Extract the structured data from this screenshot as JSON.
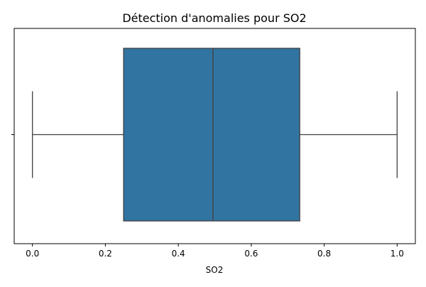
{
  "chart_data": {
    "type": "box",
    "title": "Détection d'anomalies pour SO2",
    "xlabel": "SO2",
    "ylabel": "",
    "orientation": "horizontal",
    "xlim": [
      -0.05,
      1.05
    ],
    "xticks": [
      0.0,
      0.2,
      0.4,
      0.6,
      0.8,
      1.0
    ],
    "xtick_labels": [
      "0.0",
      "0.2",
      "0.4",
      "0.6",
      "0.8",
      "1.0"
    ],
    "ytick_labels": [
      ""
    ],
    "grid": false,
    "series": [
      {
        "min": 0.0,
        "q1": 0.25,
        "median": 0.495,
        "q3": 0.733,
        "max": 1.0,
        "outliers": []
      }
    ],
    "colors": {
      "box_fill": "#3274a1",
      "box_edge": "#3f3f3f",
      "axis": "#000000"
    }
  }
}
